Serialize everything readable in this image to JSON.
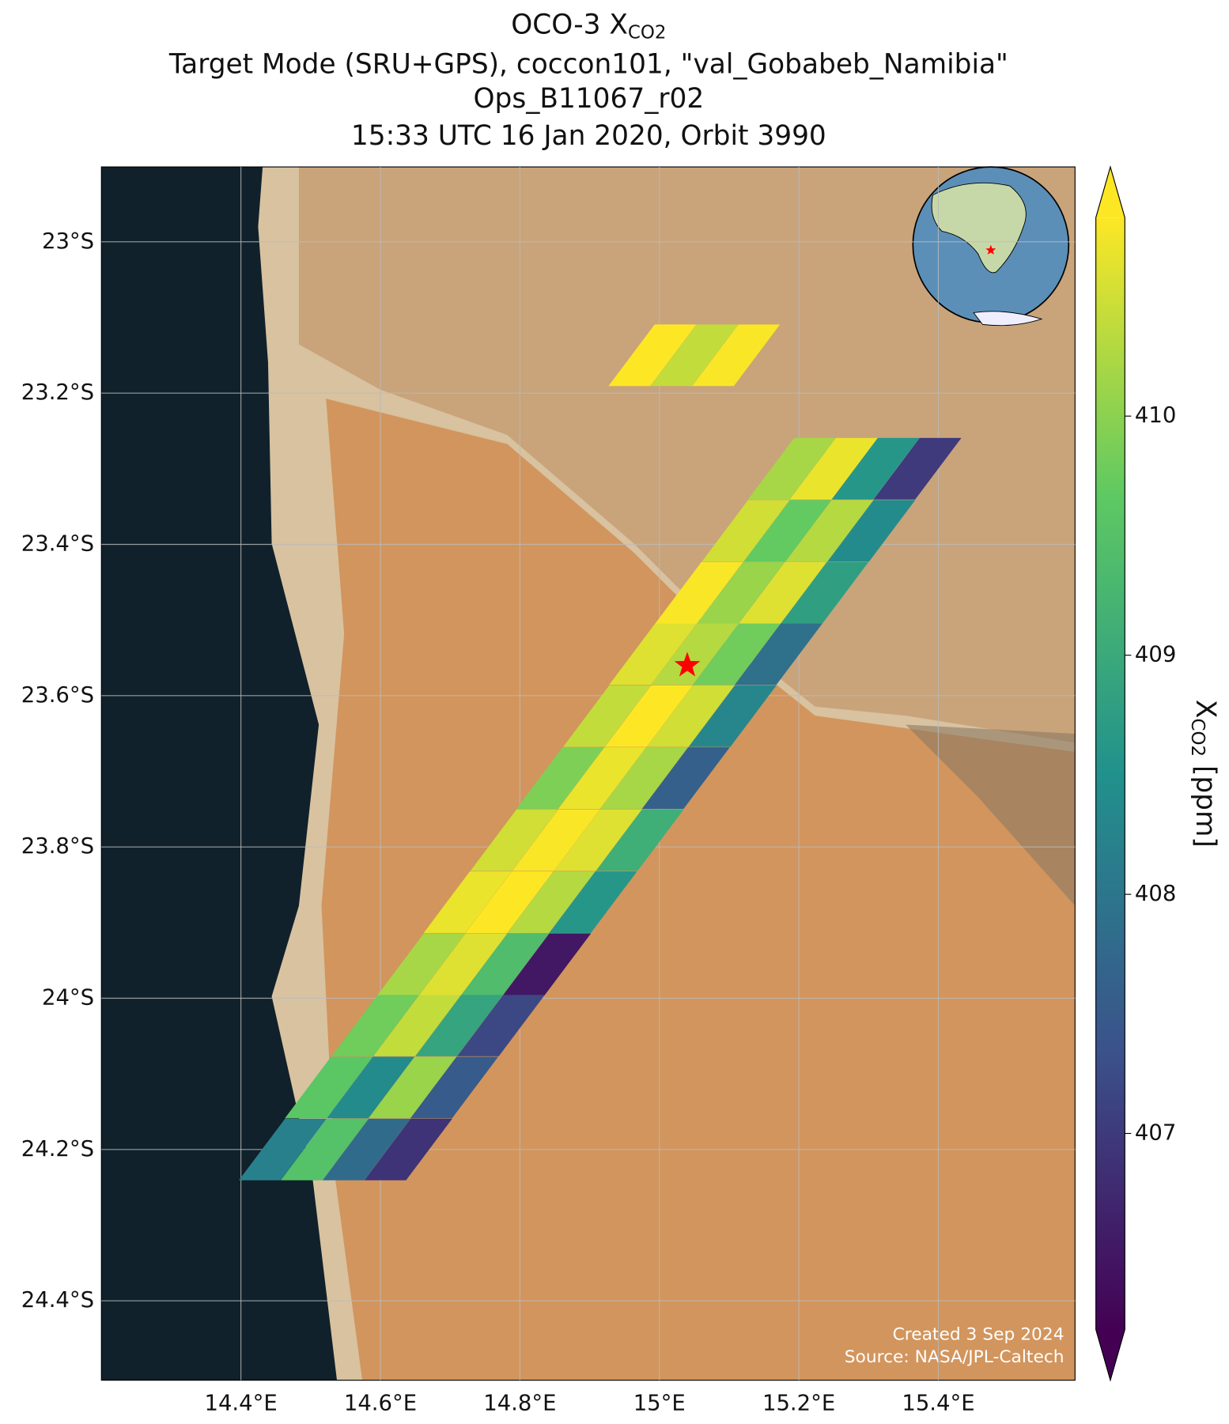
{
  "chart_data": {
    "type": "map",
    "title": {
      "main": "OCO-3 X",
      "subscript": "CO2"
    },
    "subtitle_lines": [
      "Target Mode (SRU+GPS), coccon101, \"val_Gobabeb_Namibia\"",
      "Ops_B11067_r02",
      "15:33 UTC 16 Jan 2020, Orbit 3990"
    ],
    "xlim": [
      14.2,
      15.596
    ],
    "ylim": [
      -24.505,
      -22.901
    ],
    "xticks": [
      {
        "value": 14.4,
        "label": "14.4°E"
      },
      {
        "value": 14.6,
        "label": "14.6°E"
      },
      {
        "value": 14.8,
        "label": "14.8°E"
      },
      {
        "value": 15.0,
        "label": "15°E"
      },
      {
        "value": 15.2,
        "label": "15.2°E"
      },
      {
        "value": 15.4,
        "label": "15.4°E"
      }
    ],
    "yticks": [
      {
        "value": -23.0,
        "label": "23°S"
      },
      {
        "value": -23.2,
        "label": "23.2°S"
      },
      {
        "value": -23.4,
        "label": "23.4°S"
      },
      {
        "value": -23.6,
        "label": "23.6°S"
      },
      {
        "value": -23.8,
        "label": "23.8°S"
      },
      {
        "value": -24.0,
        "label": "24°S"
      },
      {
        "value": -24.2,
        "label": "24.2°S"
      },
      {
        "value": -24.4,
        "label": "24.4°S"
      }
    ],
    "grid": true,
    "colormap": "viridis",
    "clim": [
      406.18,
      410.83
    ],
    "colorbar_ticks": [
      407,
      408,
      409,
      410
    ],
    "colorbar_label": {
      "main": "X",
      "subscript": "CO2",
      "unit": " [ppm]"
    },
    "site": {
      "lon": 15.04,
      "lat": -23.56,
      "color": "#ff0000"
    },
    "soundings": {
      "lon": [
        14.46,
        14.52,
        14.58,
        14.64,
        14.526,
        14.586,
        14.646,
        14.706,
        14.593,
        14.653,
        14.713,
        14.773,
        14.659,
        14.719,
        14.779,
        14.839,
        14.725,
        14.785,
        14.845,
        14.905,
        14.792,
        14.852,
        14.912,
        14.972,
        14.858,
        14.918,
        14.978,
        15.038,
        14.925,
        14.985,
        15.045,
        15.105,
        14.991,
        15.051,
        15.111,
        15.171,
        15.057,
        15.117,
        15.177,
        15.237,
        15.124,
        15.184,
        15.244,
        15.304,
        15.19,
        15.25,
        15.31,
        15.37,
        14.99,
        15.05,
        15.11
      ],
      "lat": [
        -24.2,
        -24.2,
        -24.2,
        -24.2,
        -24.118,
        -24.118,
        -24.118,
        -24.118,
        -24.036,
        -24.036,
        -24.036,
        -24.036,
        -23.955,
        -23.955,
        -23.955,
        -23.955,
        -23.873,
        -23.873,
        -23.873,
        -23.873,
        -23.791,
        -23.791,
        -23.791,
        -23.791,
        -23.709,
        -23.709,
        -23.709,
        -23.709,
        -23.627,
        -23.627,
        -23.627,
        -23.627,
        -23.545,
        -23.545,
        -23.545,
        -23.545,
        -23.464,
        -23.464,
        -23.464,
        -23.464,
        -23.382,
        -23.382,
        -23.382,
        -23.382,
        -23.3,
        -23.3,
        -23.3,
        -23.3,
        -23.15,
        -23.15,
        -23.15
      ],
      "xco2": [
        408.2,
        409.5,
        407.8,
        406.9,
        409.6,
        408.4,
        410.1,
        407.5,
        409.8,
        410.4,
        408.9,
        407.2,
        410.2,
        410.6,
        409.4,
        406.5,
        410.7,
        410.9,
        410.3,
        408.6,
        410.5,
        410.8,
        410.6,
        409.1,
        409.9,
        410.7,
        410.2,
        407.6,
        410.4,
        410.9,
        410.5,
        408.3,
        410.6,
        410.3,
        409.8,
        407.9,
        410.8,
        410.1,
        410.6,
        408.8,
        410.5,
        409.7,
        410.3,
        408.4,
        410.2,
        410.7,
        408.6,
        407.0,
        410.9,
        410.4,
        410.8
      ]
    },
    "credits": [
      "Created 3 Sep 2024",
      "Source: NASA/JPL-Caltech"
    ]
  }
}
